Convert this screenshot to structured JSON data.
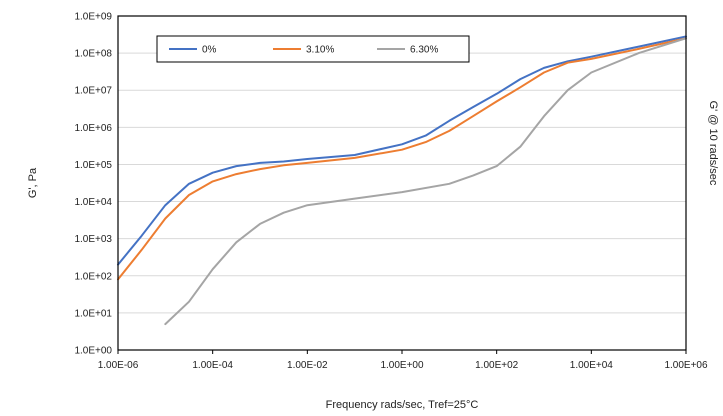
{
  "chart_data": {
    "type": "line",
    "xlabel": "Frequency rads/sec, Tref=25°C",
    "ylabel": "G', Pa",
    "right_label": "G' @ 10 rads/sec",
    "x_scale": "log",
    "y_scale": "log",
    "xlim": [
      1e-06,
      1000000.0
    ],
    "ylim": [
      1,
      1000000000.0
    ],
    "x_tick_values": [
      1e-06,
      0.0001,
      0.01,
      1.0,
      100.0,
      10000.0,
      1000000.0
    ],
    "x_tick_labels": [
      "1.00E-06",
      "1.00E-04",
      "1.00E-02",
      "1.00E+00",
      "1.00E+02",
      "1.00E+04",
      "1.00E+06"
    ],
    "y_tick_values": [
      1,
      10,
      100,
      1000,
      10000,
      100000,
      1000000,
      10000000,
      100000000,
      1000000000
    ],
    "y_tick_labels": [
      "1.0E+00",
      "1.0E+01",
      "1.0E+02",
      "1.0E+03",
      "1.0E+04",
      "1.0E+05",
      "1.0E+06",
      "1.0E+07",
      "1.0E+08",
      "1.0E+09"
    ],
    "grid": true,
    "legend_position": "top-left",
    "series": [
      {
        "name": "0%",
        "color": "#4472C4",
        "x": [
          1e-06,
          3.16e-06,
          1e-05,
          3.16e-05,
          0.0001,
          0.000316,
          0.001,
          0.00316,
          0.01,
          0.1,
          1.0,
          3.16,
          10.0,
          31.6,
          100.0,
          316.0,
          1000.0,
          3160.0,
          10000.0,
          100000.0,
          1000000.0
        ],
        "y": [
          200,
          1200,
          8000,
          30000,
          60000,
          90000,
          110000,
          120000,
          140000,
          180000,
          350000,
          600000,
          1500000,
          3500000,
          8000000,
          20000000,
          40000000,
          60000000,
          80000000,
          150000000,
          280000000
        ]
      },
      {
        "name": "3.10%",
        "color": "#ED7D31",
        "x": [
          1e-06,
          3.16e-06,
          1e-05,
          3.16e-05,
          0.0001,
          0.000316,
          0.001,
          0.00316,
          0.01,
          0.1,
          1.0,
          3.16,
          10.0,
          31.6,
          100.0,
          316.0,
          1000.0,
          3160.0,
          10000.0,
          100000.0,
          1000000.0
        ],
        "y": [
          80,
          500,
          3500,
          15000,
          35000,
          55000,
          75000,
          95000,
          110000,
          150000,
          250000,
          400000,
          800000,
          2000000,
          5000000,
          12000000,
          30000000,
          55000000,
          70000000,
          130000000,
          250000000
        ]
      },
      {
        "name": "6.30%",
        "color": "#A5A5A5",
        "x": [
          1e-05,
          3.16e-05,
          0.0001,
          0.000316,
          0.001,
          0.00316,
          0.01,
          0.1,
          1.0,
          10.0,
          31.6,
          100.0,
          316.0,
          1000.0,
          3160.0,
          10000.0,
          100000.0,
          1000000.0
        ],
        "y": [
          5,
          20,
          150,
          800,
          2500,
          5000,
          8000,
          12000,
          18000,
          30000,
          50000,
          90000,
          300000,
          2000000,
          10000000,
          30000000,
          100000000,
          250000000
        ]
      }
    ]
  }
}
